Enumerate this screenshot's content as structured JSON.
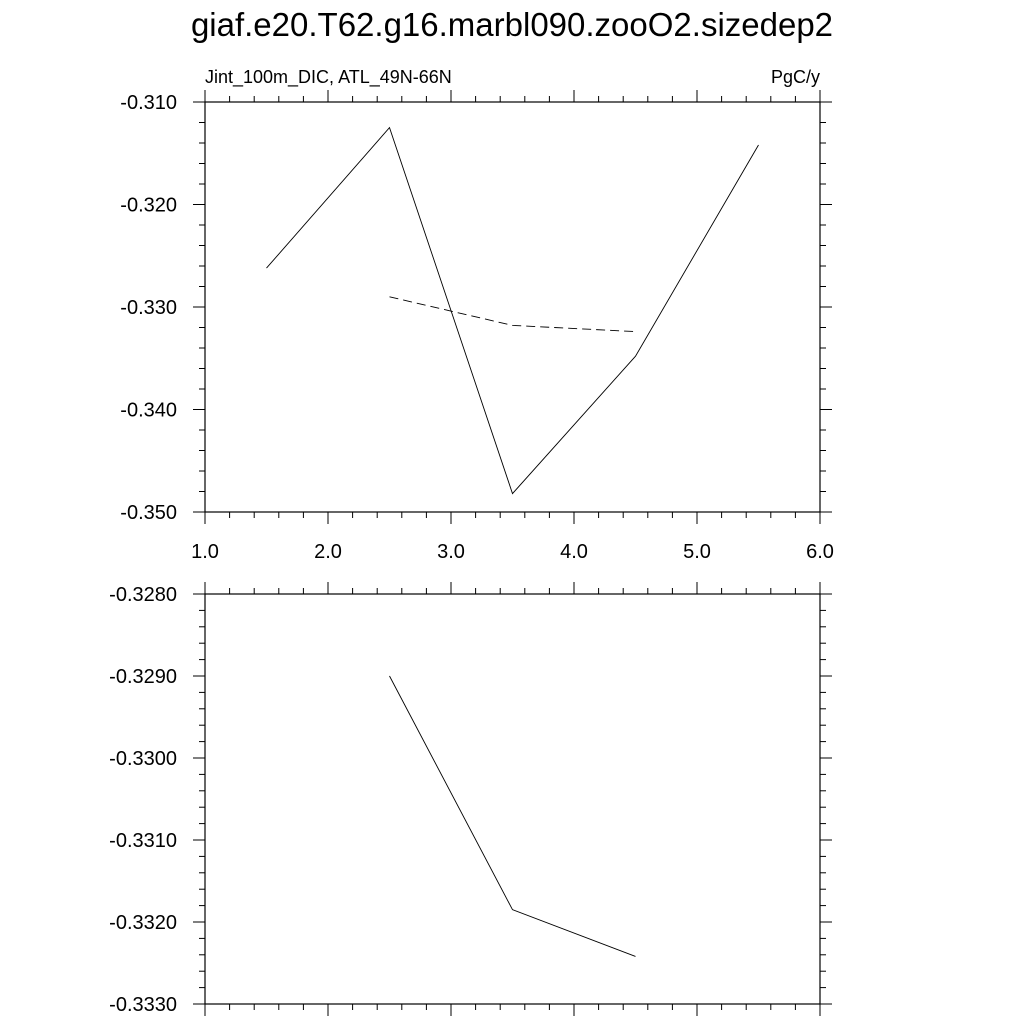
{
  "title": "giaf.e20.T62.g16.marbl090.zooO2.sizedep2",
  "chart_data": [
    {
      "type": "line",
      "left_label": "Jint_100m_DIC, ATL_49N-66N",
      "right_label": "PgC/y",
      "xlim": [
        1.0,
        6.0
      ],
      "ylim": [
        -0.35,
        -0.31
      ],
      "x_ticks": [
        "1.0",
        "2.0",
        "3.0",
        "4.0",
        "5.0",
        "6.0"
      ],
      "y_ticks": [
        "-0.310",
        "-0.320",
        "-0.330",
        "-0.340",
        "-0.350"
      ],
      "grid": false,
      "series": [
        {
          "style": "solid",
          "color": "#000000",
          "x": [
            1.5,
            2.5,
            3.5,
            4.5,
            5.5
          ],
          "y": [
            -0.3262,
            -0.3125,
            -0.3482,
            -0.3348,
            -0.3142
          ]
        },
        {
          "style": "dashed",
          "color": "#000000",
          "x": [
            2.5,
            3.5,
            4.5
          ],
          "y": [
            -0.329,
            -0.3318,
            -0.3324
          ]
        }
      ]
    },
    {
      "type": "line",
      "xlim": [
        1.0,
        6.0
      ],
      "ylim": [
        -0.333,
        -0.328
      ],
      "y_ticks": [
        "-0.3280",
        "-0.3290",
        "-0.3300",
        "-0.3310",
        "-0.3320",
        "-0.3330"
      ],
      "grid": false,
      "series": [
        {
          "style": "solid",
          "color": "#000000",
          "x": [
            2.5,
            3.5,
            4.5
          ],
          "y": [
            -0.329,
            -0.33185,
            -0.33242
          ]
        }
      ]
    }
  ]
}
